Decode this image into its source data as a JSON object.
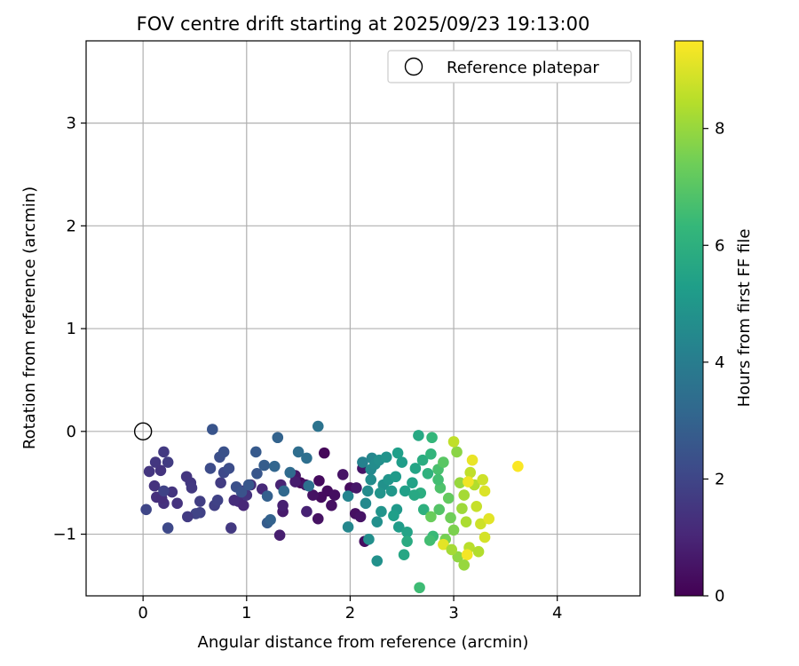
{
  "chart_data": {
    "type": "scatter",
    "title": "FOV centre drift starting at 2025/09/23 19:13:00",
    "xlabel": "Angular distance from reference (arcmin)",
    "ylabel": "Rotation from reference (arcmin)",
    "xlim": [
      -0.55,
      4.8
    ],
    "ylim": [
      -1.6,
      3.8
    ],
    "xticks": [
      "0",
      "1",
      "2",
      "3",
      "4"
    ],
    "yticks": [
      "−1",
      "0",
      "1",
      "2",
      "3"
    ],
    "grid": true,
    "legend": {
      "position": "top-right",
      "entries": [
        "Reference platepar"
      ]
    },
    "reference_point": {
      "x": 0,
      "y": 0,
      "marker": "open-circle"
    },
    "colorbar": {
      "label": "Hours from first FF file",
      "colormap": "viridis",
      "range": [
        0,
        9.5
      ],
      "ticks": [
        "0",
        "2",
        "4",
        "6",
        "8"
      ]
    },
    "points": [
      {
        "x": 1.75,
        "y": -0.21,
        "h": 0.15
      },
      {
        "x": 1.52,
        "y": -0.5,
        "h": 0.2
      },
      {
        "x": 1.7,
        "y": -0.48,
        "h": 0.25
      },
      {
        "x": 1.78,
        "y": -0.58,
        "h": 0.3
      },
      {
        "x": 1.85,
        "y": -0.62,
        "h": 0.35
      },
      {
        "x": 1.82,
        "y": -0.72,
        "h": 0.4
      },
      {
        "x": 1.69,
        "y": -0.85,
        "h": 0.45
      },
      {
        "x": 1.93,
        "y": -0.42,
        "h": 0.5
      },
      {
        "x": 2.0,
        "y": -0.55,
        "h": 0.3
      },
      {
        "x": 2.05,
        "y": -0.8,
        "h": 0.4
      },
      {
        "x": 2.1,
        "y": -0.83,
        "h": 0.5
      },
      {
        "x": 2.14,
        "y": -1.07,
        "h": 0.35
      },
      {
        "x": 2.06,
        "y": -0.55,
        "h": 0.6
      },
      {
        "x": 2.12,
        "y": -0.36,
        "h": 0.55
      },
      {
        "x": 1.72,
        "y": -0.64,
        "h": 0.3
      },
      {
        "x": 1.64,
        "y": -0.62,
        "h": 0.45
      },
      {
        "x": 1.57,
        "y": -0.52,
        "h": 0.5
      },
      {
        "x": 1.47,
        "y": -0.43,
        "h": 0.6
      },
      {
        "x": 1.35,
        "y": -0.78,
        "h": 0.7
      },
      {
        "x": 1.32,
        "y": -1.01,
        "h": 0.8
      },
      {
        "x": 1.35,
        "y": -0.72,
        "h": 0.85
      },
      {
        "x": 1.47,
        "y": -0.49,
        "h": 0.75
      },
      {
        "x": 1.58,
        "y": -0.78,
        "h": 0.9
      },
      {
        "x": 1.33,
        "y": -0.52,
        "h": 0.95
      },
      {
        "x": 1.15,
        "y": -0.56,
        "h": 1.1
      },
      {
        "x": 1.04,
        "y": -0.52,
        "h": 1.2
      },
      {
        "x": 0.96,
        "y": -0.58,
        "h": 1.3
      },
      {
        "x": 0.92,
        "y": -0.68,
        "h": 1.15
      },
      {
        "x": 0.97,
        "y": -0.72,
        "h": 1.05
      },
      {
        "x": 1.0,
        "y": -0.62,
        "h": 1.4
      },
      {
        "x": 0.88,
        "y": -0.67,
        "h": 1.25
      },
      {
        "x": 0.85,
        "y": -0.94,
        "h": 1.6
      },
      {
        "x": 0.75,
        "y": -0.5,
        "h": 1.7
      },
      {
        "x": 0.69,
        "y": -0.72,
        "h": 1.8
      },
      {
        "x": 0.72,
        "y": -0.67,
        "h": 1.9
      },
      {
        "x": 0.55,
        "y": -0.68,
        "h": 1.75
      },
      {
        "x": 0.55,
        "y": -0.79,
        "h": 1.85
      },
      {
        "x": 0.51,
        "y": -0.8,
        "h": 1.95
      },
      {
        "x": 0.43,
        "y": -0.83,
        "h": 1.65
      },
      {
        "x": 0.42,
        "y": -0.44,
        "h": 1.5
      },
      {
        "x": 0.46,
        "y": -0.5,
        "h": 1.55
      },
      {
        "x": 0.47,
        "y": -0.55,
        "h": 1.6
      },
      {
        "x": 0.33,
        "y": -0.7,
        "h": 1.4
      },
      {
        "x": 0.28,
        "y": -0.59,
        "h": 1.45
      },
      {
        "x": 0.2,
        "y": -0.7,
        "h": 1.35
      },
      {
        "x": 0.13,
        "y": -0.64,
        "h": 1.3
      },
      {
        "x": 0.18,
        "y": -0.65,
        "h": 1.25
      },
      {
        "x": 0.11,
        "y": -0.53,
        "h": 1.4
      },
      {
        "x": 0.06,
        "y": -0.39,
        "h": 1.5
      },
      {
        "x": 0.12,
        "y": -0.3,
        "h": 1.55
      },
      {
        "x": 0.17,
        "y": -0.38,
        "h": 1.45
      },
      {
        "x": 0.2,
        "y": -0.2,
        "h": 1.6
      },
      {
        "x": 0.24,
        "y": -0.3,
        "h": 1.7
      },
      {
        "x": 0.03,
        "y": -0.76,
        "h": 2.0
      },
      {
        "x": 0.24,
        "y": -0.94,
        "h": 2.1
      },
      {
        "x": 0.2,
        "y": -0.58,
        "h": 1.9
      },
      {
        "x": 0.65,
        "y": -0.36,
        "h": 2.2
      },
      {
        "x": 0.74,
        "y": -0.25,
        "h": 2.3
      },
      {
        "x": 0.78,
        "y": -0.2,
        "h": 2.4
      },
      {
        "x": 0.67,
        "y": 0.02,
        "h": 2.5
      },
      {
        "x": 0.78,
        "y": -0.4,
        "h": 2.1
      },
      {
        "x": 0.83,
        "y": -0.36,
        "h": 2.25
      },
      {
        "x": 0.9,
        "y": -0.54,
        "h": 2.35
      },
      {
        "x": 0.95,
        "y": -0.59,
        "h": 2.45
      },
      {
        "x": 1.02,
        "y": -0.52,
        "h": 2.6
      },
      {
        "x": 1.1,
        "y": -0.41,
        "h": 2.55
      },
      {
        "x": 1.09,
        "y": -0.2,
        "h": 2.7
      },
      {
        "x": 1.17,
        "y": -0.33,
        "h": 2.8
      },
      {
        "x": 1.2,
        "y": -0.63,
        "h": 2.9
      },
      {
        "x": 1.2,
        "y": -0.89,
        "h": 2.75
      },
      {
        "x": 1.23,
        "y": -0.86,
        "h": 2.95
      },
      {
        "x": 1.3,
        "y": -0.06,
        "h": 3.0
      },
      {
        "x": 1.27,
        "y": -0.34,
        "h": 3.1
      },
      {
        "x": 1.36,
        "y": -0.58,
        "h": 3.2
      },
      {
        "x": 1.42,
        "y": -0.4,
        "h": 3.3
      },
      {
        "x": 1.5,
        "y": -0.2,
        "h": 3.4
      },
      {
        "x": 1.58,
        "y": -0.26,
        "h": 3.45
      },
      {
        "x": 1.6,
        "y": -0.53,
        "h": 3.5
      },
      {
        "x": 1.69,
        "y": 0.05,
        "h": 3.6
      },
      {
        "x": 1.98,
        "y": -0.93,
        "h": 4.4
      },
      {
        "x": 1.98,
        "y": -0.63,
        "h": 4.3
      },
      {
        "x": 2.15,
        "y": -0.7,
        "h": 4.5
      },
      {
        "x": 2.17,
        "y": -0.58,
        "h": 4.55
      },
      {
        "x": 2.2,
        "y": -0.47,
        "h": 4.6
      },
      {
        "x": 2.18,
        "y": -1.05,
        "h": 4.7
      },
      {
        "x": 2.26,
        "y": -1.26,
        "h": 4.8
      },
      {
        "x": 2.21,
        "y": -0.26,
        "h": 4.4
      },
      {
        "x": 2.2,
        "y": -0.37,
        "h": 4.5
      },
      {
        "x": 2.24,
        "y": -0.32,
        "h": 4.6
      },
      {
        "x": 2.28,
        "y": -0.28,
        "h": 4.7
      },
      {
        "x": 2.32,
        "y": -0.52,
        "h": 4.8
      },
      {
        "x": 2.3,
        "y": -0.78,
        "h": 4.9
      },
      {
        "x": 2.26,
        "y": -0.88,
        "h": 4.75
      },
      {
        "x": 2.35,
        "y": -0.25,
        "h": 4.85
      },
      {
        "x": 2.37,
        "y": -0.47,
        "h": 4.95
      },
      {
        "x": 2.4,
        "y": -0.58,
        "h": 5.0
      },
      {
        "x": 2.45,
        "y": -0.76,
        "h": 5.1
      },
      {
        "x": 2.47,
        "y": -0.93,
        "h": 5.2
      },
      {
        "x": 2.44,
        "y": -0.44,
        "h": 5.15
      },
      {
        "x": 2.46,
        "y": -0.21,
        "h": 5.3
      },
      {
        "x": 2.5,
        "y": -0.3,
        "h": 5.25
      },
      {
        "x": 2.53,
        "y": -0.58,
        "h": 5.35
      },
      {
        "x": 2.55,
        "y": -0.98,
        "h": 5.5
      },
      {
        "x": 2.52,
        "y": -1.2,
        "h": 5.6
      },
      {
        "x": 2.55,
        "y": -1.07,
        "h": 5.8
      },
      {
        "x": 2.6,
        "y": -0.5,
        "h": 5.45
      },
      {
        "x": 2.63,
        "y": -0.36,
        "h": 5.55
      },
      {
        "x": 2.66,
        "y": -0.04,
        "h": 5.7
      },
      {
        "x": 2.7,
        "y": -0.28,
        "h": 5.85
      },
      {
        "x": 2.68,
        "y": -0.6,
        "h": 5.9
      },
      {
        "x": 2.71,
        "y": -0.76,
        "h": 6.0
      },
      {
        "x": 2.75,
        "y": -0.41,
        "h": 6.1
      },
      {
        "x": 2.78,
        "y": -0.22,
        "h": 6.2
      },
      {
        "x": 2.79,
        "y": -0.06,
        "h": 6.3
      },
      {
        "x": 2.8,
        "y": -1.02,
        "h": 6.4
      },
      {
        "x": 2.67,
        "y": -1.52,
        "h": 6.5
      },
      {
        "x": 2.77,
        "y": -1.06,
        "h": 6.6
      },
      {
        "x": 2.85,
        "y": -0.37,
        "h": 6.7
      },
      {
        "x": 2.87,
        "y": -0.55,
        "h": 6.8
      },
      {
        "x": 2.86,
        "y": -0.76,
        "h": 6.9
      },
      {
        "x": 2.9,
        "y": -0.3,
        "h": 7.0
      },
      {
        "x": 2.95,
        "y": -0.65,
        "h": 7.2
      },
      {
        "x": 2.97,
        "y": -0.84,
        "h": 7.4
      },
      {
        "x": 3.0,
        "y": -0.96,
        "h": 7.6
      },
      {
        "x": 3.03,
        "y": -0.2,
        "h": 7.8
      },
      {
        "x": 3.04,
        "y": -1.22,
        "h": 7.9
      },
      {
        "x": 2.92,
        "y": -1.05,
        "h": 7.5
      },
      {
        "x": 3.06,
        "y": -0.5,
        "h": 8.0
      },
      {
        "x": 3.08,
        "y": -0.75,
        "h": 8.1
      },
      {
        "x": 3.1,
        "y": -0.62,
        "h": 8.2
      },
      {
        "x": 3.12,
        "y": -0.88,
        "h": 8.3
      },
      {
        "x": 3.15,
        "y": -1.13,
        "h": 8.5
      },
      {
        "x": 3.16,
        "y": -0.4,
        "h": 8.6
      },
      {
        "x": 3.2,
        "y": -0.52,
        "h": 8.4
      },
      {
        "x": 3.22,
        "y": -0.73,
        "h": 8.7
      },
      {
        "x": 3.26,
        "y": -0.9,
        "h": 8.8
      },
      {
        "x": 3.3,
        "y": -1.03,
        "h": 8.9
      },
      {
        "x": 3.3,
        "y": -0.58,
        "h": 9.0
      },
      {
        "x": 3.34,
        "y": -0.85,
        "h": 9.1
      },
      {
        "x": 3.18,
        "y": -0.28,
        "h": 9.2
      },
      {
        "x": 3.14,
        "y": -0.49,
        "h": 9.3
      },
      {
        "x": 3.13,
        "y": -1.2,
        "h": 9.35
      },
      {
        "x": 3.62,
        "y": -0.34,
        "h": 9.45
      },
      {
        "x": 2.9,
        "y": -1.1,
        "h": 9.1
      },
      {
        "x": 2.78,
        "y": -0.83,
        "h": 7.3
      },
      {
        "x": 2.85,
        "y": -0.47,
        "h": 6.6
      },
      {
        "x": 2.62,
        "y": -0.62,
        "h": 5.7
      },
      {
        "x": 2.42,
        "y": -0.82,
        "h": 5.3
      },
      {
        "x": 2.29,
        "y": -0.6,
        "h": 4.9
      },
      {
        "x": 2.12,
        "y": -0.3,
        "h": 4.2
      },
      {
        "x": 3.1,
        "y": -1.3,
        "h": 8.0
      },
      {
        "x": 3.24,
        "y": -1.17,
        "h": 8.4
      },
      {
        "x": 2.98,
        "y": -1.15,
        "h": 8.2
      },
      {
        "x": 3.0,
        "y": -0.1,
        "h": 8.6
      },
      {
        "x": 3.28,
        "y": -0.47,
        "h": 8.8
      }
    ]
  }
}
